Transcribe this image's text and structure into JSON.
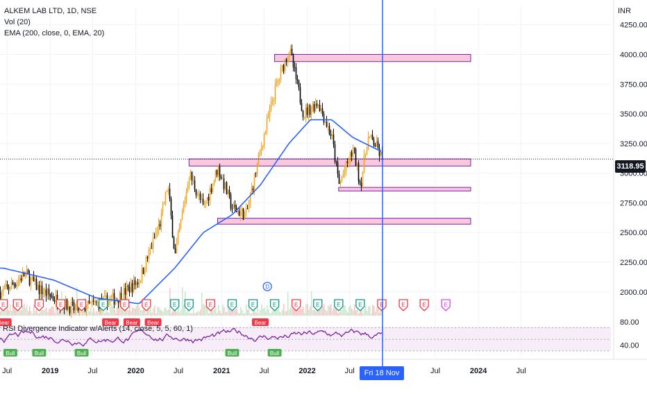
{
  "legend": {
    "title": "ALKEM LAB LTD, 1D, NSE",
    "vol": "Vol (20)",
    "ema": "EMA (200, close, 0, EMA, 20)"
  },
  "currency": "INR",
  "rsi_title": "RSI Divergence Indicator w/Alerts (14, close, 5, 5, 60, 1)",
  "last_price": "3118.95",
  "crosshair_date": "Fri 18 Nov '22",
  "colors": {
    "ema": "#2962ff",
    "zone_fill": "#f8c8dc",
    "zone_border": "#7b1fa2",
    "rsi_line": "#7b1fa2",
    "crosshair": "#2962ff",
    "candle_up": "#f7a21b",
    "candle_down": "#000000",
    "earnings_red": "#f23645",
    "earnings_green": "#089981",
    "bear": "#f23645",
    "bull": "#4caf50"
  },
  "chart_data": {
    "type": "candlestick",
    "symbol": "ALKEM LAB LTD",
    "interval": "1D",
    "exchange": "NSE",
    "y_ticks": [
      "4250.00",
      "4000.00",
      "3750.00",
      "3500.00",
      "3250.00",
      "3000.00",
      "2750.00",
      "2500.00",
      "2250.00",
      "2000.00"
    ],
    "ylim": [
      1800,
      4400
    ],
    "x_ticks": [
      "Jul",
      "2019",
      "Jul",
      "2020",
      "Jul",
      "2021",
      "Jul",
      "2022",
      "Jul",
      "Jul",
      "2024",
      "Jul"
    ],
    "price_path": [
      [
        "2018-06",
        2000
      ],
      [
        "2018-09",
        2150
      ],
      [
        "2018-11",
        2020
      ],
      [
        "2019-01",
        1950
      ],
      [
        "2019-04",
        1850
      ],
      [
        "2019-07",
        1900
      ],
      [
        "2019-10",
        1950
      ],
      [
        "2020-01",
        2100
      ],
      [
        "2020-04",
        2600
      ],
      [
        "2020-05",
        2900
      ],
      [
        "2020-06",
        2300
      ],
      [
        "2020-08",
        3000
      ],
      [
        "2020-10",
        2700
      ],
      [
        "2020-12",
        3050
      ],
      [
        "2021-02",
        2700
      ],
      [
        "2021-04",
        2650
      ],
      [
        "2021-06",
        3200
      ],
      [
        "2021-08",
        3700
      ],
      [
        "2021-10",
        4050
      ],
      [
        "2021-12",
        3500
      ],
      [
        "2022-02",
        3600
      ],
      [
        "2022-04",
        3300
      ],
      [
        "2022-05",
        2900
      ],
      [
        "2022-07",
        3200
      ],
      [
        "2022-08",
        2900
      ],
      [
        "2022-09",
        3300
      ],
      [
        "2022-10",
        3250
      ],
      [
        "2022-11",
        3119
      ]
    ],
    "ema_path": [
      [
        "2018-06",
        2200
      ],
      [
        "2019-01",
        2100
      ],
      [
        "2019-07",
        1950
      ],
      [
        "2020-01",
        1900
      ],
      [
        "2020-06",
        2200
      ],
      [
        "2020-10",
        2500
      ],
      [
        "2021-02",
        2650
      ],
      [
        "2021-06",
        2900
      ],
      [
        "2021-10",
        3250
      ],
      [
        "2022-01",
        3450
      ],
      [
        "2022-04",
        3450
      ],
      [
        "2022-07",
        3300
      ],
      [
        "2022-11",
        3180
      ]
    ],
    "zones": [
      {
        "start": "2021-08",
        "top": 4000,
        "bottom": 3940
      },
      {
        "start": "2020-08",
        "top": 3120,
        "bottom": 3060
      },
      {
        "start": "2022-05",
        "top": 2880,
        "bottom": 2850
      },
      {
        "start": "2020-12",
        "top": 2620,
        "bottom": 2570
      }
    ],
    "last_price": 3118.95,
    "crosshair_date": "2022-11-18",
    "rsi": {
      "y_ticks": [
        "80.00",
        "40.00"
      ],
      "ylim": [
        25,
        85
      ],
      "upper_band": 70,
      "lower_band": 30,
      "bear_signals": [
        "2018-06",
        "2019-09",
        "2019-12",
        "2020-03",
        "2021-06"
      ],
      "bull_signals": [
        "2018-07",
        "2018-11",
        "2019-05",
        "2021-02",
        "2021-08"
      ]
    },
    "dividend_marker": "2021-07",
    "earnings_markers": [
      {
        "date": "2018-06",
        "color": "red"
      },
      {
        "date": "2018-08",
        "color": "red"
      },
      {
        "date": "2018-11",
        "color": "red"
      },
      {
        "date": "2019-02",
        "color": "red"
      },
      {
        "date": "2019-05",
        "color": "red"
      },
      {
        "date": "2019-08",
        "color": "green"
      },
      {
        "date": "2019-11",
        "color": "red"
      },
      {
        "date": "2020-02",
        "color": "red"
      },
      {
        "date": "2020-06",
        "color": "green"
      },
      {
        "date": "2020-08",
        "color": "green"
      },
      {
        "date": "2020-11",
        "color": "red"
      },
      {
        "date": "2021-02",
        "color": "green"
      },
      {
        "date": "2021-05",
        "color": "green"
      },
      {
        "date": "2021-08",
        "color": "green"
      },
      {
        "date": "2021-11",
        "color": "red"
      },
      {
        "date": "2022-02",
        "color": "green"
      },
      {
        "date": "2022-05",
        "color": "green"
      },
      {
        "date": "2022-08",
        "color": "green"
      },
      {
        "date": "2022-11",
        "color": "red"
      },
      {
        "date": "2023-02",
        "color": "red"
      },
      {
        "date": "2023-05",
        "color": "red"
      },
      {
        "date": "2023-08",
        "color": "upcoming"
      }
    ]
  }
}
